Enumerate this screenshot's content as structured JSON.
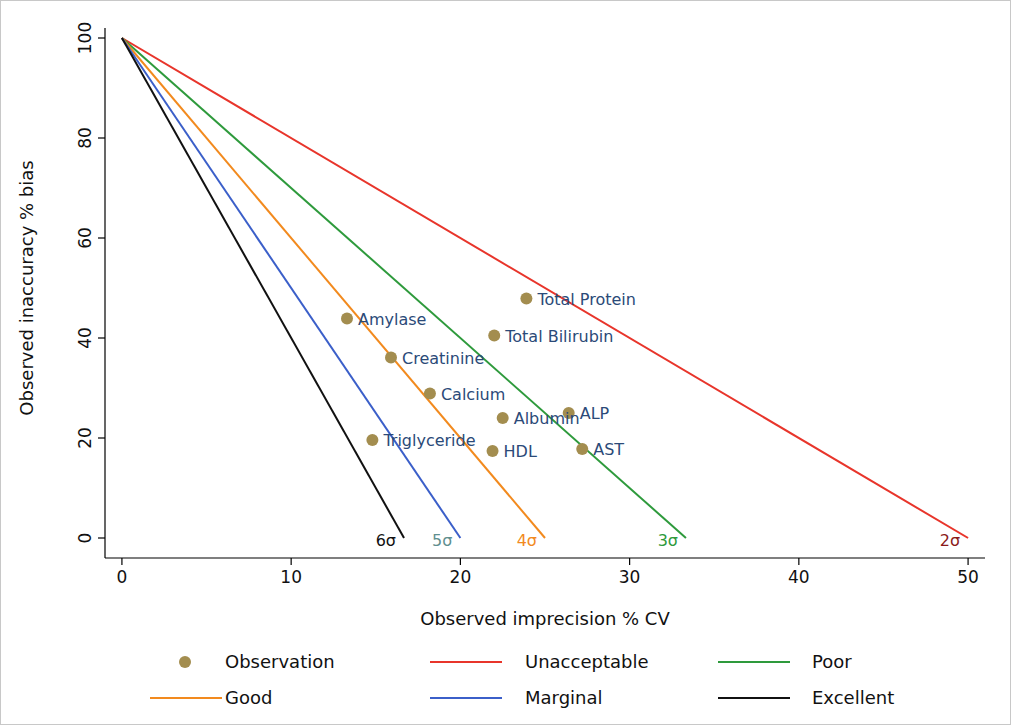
{
  "chart_data": {
    "type": "scatter",
    "xlabel": "Observed imprecision % CV",
    "ylabel": "Observed inaccuracy % bias",
    "xlim": [
      -1,
      51
    ],
    "ylim": [
      -4,
      102
    ],
    "xticks": [
      0,
      10,
      20,
      30,
      40,
      50
    ],
    "yticks": [
      0,
      20,
      40,
      60,
      80,
      100
    ],
    "grid": false,
    "legend": "bottom",
    "series": [
      {
        "name": "Observation",
        "type": "scatter",
        "marker": "circle",
        "color": "#a38d4f",
        "x": [
          13.3,
          15.9,
          18.2,
          14.8,
          21.9,
          22.5,
          26.4,
          27.2,
          22.0,
          23.9
        ],
        "values": [
          43.9,
          36.1,
          28.9,
          19.6,
          17.4,
          24.0,
          25.0,
          17.8,
          40.5,
          47.9
        ],
        "point_labels": [
          "Amylase",
          "Creatinine",
          "Calcium",
          "Triglyceride",
          "HDL",
          "Albumin",
          "ALP",
          "AST",
          "Total Bilirubin",
          "Total Protein"
        ]
      },
      {
        "name": "Unacceptable",
        "type": "line",
        "color": "#e8352b",
        "x": [
          0,
          50
        ],
        "values": [
          100,
          0
        ],
        "end_label": "2σ"
      },
      {
        "name": "Poor",
        "type": "line",
        "color": "#2e9a3c",
        "x": [
          0,
          33.33
        ],
        "values": [
          100,
          0
        ],
        "end_label": "3σ"
      },
      {
        "name": "Good",
        "type": "line",
        "color": "#f28a1e",
        "x": [
          0,
          25
        ],
        "values": [
          100,
          0
        ],
        "end_label": "4σ"
      },
      {
        "name": "Marginal",
        "type": "line",
        "color": "#3b5fc9",
        "x": [
          0,
          20
        ],
        "values": [
          100,
          0
        ],
        "end_label": "5σ"
      },
      {
        "name": "Excellent",
        "type": "line",
        "color": "#111111",
        "x": [
          0,
          16.67
        ],
        "values": [
          100,
          0
        ],
        "end_label": "6σ"
      }
    ]
  }
}
